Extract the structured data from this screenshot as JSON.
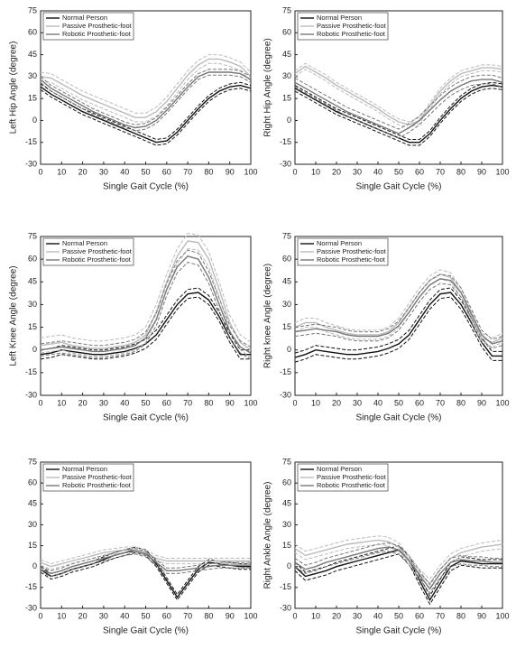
{
  "chart_data": [
    {
      "type": "line",
      "ylabel": "Left Hip Angle (degree)",
      "xlabel": "Single Gait Cycle (%)",
      "x": [
        0,
        5,
        10,
        15,
        20,
        25,
        30,
        35,
        40,
        45,
        50,
        55,
        60,
        65,
        70,
        75,
        80,
        85,
        90,
        95,
        100
      ],
      "xlim": [
        0,
        100
      ],
      "xticks": [
        0,
        10,
        20,
        30,
        40,
        50,
        60,
        70,
        80,
        90,
        100
      ],
      "ylim": [
        -30,
        75
      ],
      "yticks": [
        -30,
        -15,
        0,
        15,
        30,
        45,
        60,
        75
      ],
      "legend": "top-left",
      "series": [
        {
          "name": "Normal Person",
          "color": "#111111",
          "sd": 2,
          "values": [
            23,
            18,
            14,
            10,
            6,
            3,
            0,
            -3,
            -6,
            -9,
            -12,
            -15,
            -14,
            -8,
            0,
            8,
            15,
            20,
            23,
            24,
            22
          ]
        },
        {
          "name": "Passive Prosthetic-foot",
          "color": "#bbbbbb",
          "sd": 3,
          "values": [
            30,
            29,
            25,
            21,
            17,
            14,
            11,
            8,
            5,
            2,
            2,
            6,
            13,
            22,
            31,
            38,
            42,
            42,
            40,
            37,
            30
          ]
        },
        {
          "name": "Robotic Prosthetic-foot",
          "color": "#777777",
          "sd": 2,
          "values": [
            28,
            22,
            18,
            14,
            10,
            6,
            3,
            0,
            -3,
            -5,
            -4,
            0,
            7,
            15,
            23,
            30,
            33,
            33,
            33,
            32,
            28
          ]
        }
      ]
    },
    {
      "type": "line",
      "ylabel": "Right Hip Angle (degree)",
      "xlabel": "Single Gait Cycle (%)",
      "x": [
        0,
        5,
        10,
        15,
        20,
        25,
        30,
        35,
        40,
        45,
        50,
        55,
        60,
        65,
        70,
        75,
        80,
        85,
        90,
        95,
        100
      ],
      "xlim": [
        0,
        100
      ],
      "xticks": [
        0,
        10,
        20,
        30,
        40,
        50,
        60,
        70,
        80,
        90,
        100
      ],
      "ylim": [
        -30,
        75
      ],
      "yticks": [
        -30,
        -15,
        0,
        15,
        30,
        45,
        60,
        75
      ],
      "legend": "top-left",
      "series": [
        {
          "name": "Normal Person",
          "color": "#111111",
          "sd": 2,
          "values": [
            22,
            18,
            14,
            10,
            6,
            3,
            0,
            -3,
            -6,
            -9,
            -12,
            -15,
            -15,
            -9,
            0,
            8,
            15,
            20,
            23,
            24,
            23
          ]
        },
        {
          "name": "Passive Prosthetic-foot",
          "color": "#bbbbbb",
          "sd": 2,
          "values": [
            32,
            37,
            33,
            29,
            24,
            20,
            16,
            12,
            8,
            3,
            -1,
            -3,
            0,
            10,
            20,
            27,
            32,
            34,
            36,
            36,
            35
          ]
        },
        {
          "name": "Robotic Prosthetic-foot",
          "color": "#777777",
          "sd": 3,
          "values": [
            26,
            22,
            18,
            14,
            10,
            6,
            3,
            0,
            -3,
            -6,
            -9,
            -5,
            0,
            7,
            14,
            20,
            24,
            27,
            28,
            28,
            26
          ]
        }
      ]
    },
    {
      "type": "line",
      "ylabel": "Left Knee Angle (degree)",
      "xlabel": "Single Gait Cycle (%)",
      "x": [
        0,
        5,
        10,
        15,
        20,
        25,
        30,
        35,
        40,
        45,
        50,
        55,
        60,
        65,
        70,
        75,
        80,
        85,
        90,
        95,
        100
      ],
      "xlim": [
        0,
        100
      ],
      "xticks": [
        0,
        10,
        20,
        30,
        40,
        50,
        60,
        70,
        80,
        90,
        100
      ],
      "ylim": [
        -30,
        75
      ],
      "yticks": [
        -30,
        -15,
        0,
        15,
        30,
        45,
        60,
        75
      ],
      "legend": "top-left",
      "series": [
        {
          "name": "Normal Person",
          "color": "#111111",
          "sd": 3,
          "values": [
            -3,
            -2,
            0,
            -1,
            -2,
            -3,
            -3,
            -2,
            -1,
            1,
            4,
            10,
            20,
            30,
            37,
            38,
            33,
            22,
            8,
            -3,
            -3
          ]
        },
        {
          "name": "Passive Prosthetic-foot",
          "color": "#bbbbbb",
          "sd": 5,
          "values": [
            3,
            4,
            5,
            3,
            2,
            1,
            1,
            2,
            3,
            5,
            10,
            25,
            45,
            62,
            72,
            71,
            60,
            40,
            18,
            5,
            0
          ]
        },
        {
          "name": "Robotic Prosthetic-foot",
          "color": "#777777",
          "sd": 4,
          "values": [
            0,
            1,
            2,
            1,
            0,
            -1,
            -1,
            0,
            1,
            3,
            8,
            20,
            40,
            55,
            62,
            60,
            48,
            30,
            12,
            2,
            -2
          ]
        }
      ]
    },
    {
      "type": "line",
      "ylabel": "Right knee Angle (degree)",
      "xlabel": "Single Gait Cycle (%)",
      "x": [
        0,
        5,
        10,
        15,
        20,
        25,
        30,
        35,
        40,
        45,
        50,
        55,
        60,
        65,
        70,
        75,
        80,
        85,
        90,
        95,
        100
      ],
      "xlim": [
        0,
        100
      ],
      "xticks": [
        0,
        10,
        20,
        30,
        40,
        50,
        60,
        70,
        80,
        90,
        100
      ],
      "ylim": [
        -30,
        75
      ],
      "yticks": [
        -30,
        -15,
        0,
        15,
        30,
        45,
        60,
        75
      ],
      "legend": "top-left",
      "series": [
        {
          "name": "Normal Person",
          "color": "#111111",
          "sd": 3,
          "values": [
            -5,
            -3,
            0,
            -1,
            -2,
            -3,
            -3,
            -2,
            -1,
            1,
            4,
            10,
            20,
            30,
            37,
            38,
            30,
            18,
            5,
            -4,
            -4
          ]
        },
        {
          "name": "Passive Prosthetic-foot",
          "color": "#bbbbbb",
          "sd": 3,
          "values": [
            15,
            18,
            18,
            15,
            13,
            11,
            10,
            10,
            10,
            12,
            18,
            28,
            38,
            46,
            50,
            48,
            38,
            22,
            8,
            5,
            8
          ]
        },
        {
          "name": "Robotic Prosthetic-foot",
          "color": "#777777",
          "sd": 3,
          "values": [
            12,
            13,
            14,
            13,
            12,
            10,
            9,
            9,
            9,
            11,
            16,
            25,
            35,
            43,
            47,
            46,
            38,
            24,
            10,
            4,
            6
          ]
        }
      ]
    },
    {
      "type": "line",
      "xlabel": "Single Gait Cycle (%)",
      "x": [
        0,
        5,
        10,
        15,
        20,
        25,
        30,
        35,
        40,
        45,
        50,
        55,
        60,
        65,
        70,
        75,
        80,
        85,
        90,
        95,
        100
      ],
      "xlim": [
        0,
        100
      ],
      "xticks": [
        0,
        10,
        20,
        30,
        40,
        50,
        60,
        70,
        80,
        90,
        100
      ],
      "ylim": [
        -30,
        75
      ],
      "yticks": [
        -30,
        -15,
        0,
        15,
        30,
        45,
        60,
        75
      ],
      "legend": "top-left",
      "series": [
        {
          "name": "Normal Person",
          "color": "#111111",
          "sd": 2,
          "values": [
            -2,
            -7,
            -5,
            -2,
            0,
            2,
            5,
            8,
            10,
            12,
            10,
            2,
            -10,
            -22,
            -12,
            -2,
            3,
            2,
            1,
            0,
            0
          ]
        },
        {
          "name": "Passive Prosthetic-foot",
          "color": "#bbbbbb",
          "sd": 2,
          "values": [
            3,
            0,
            2,
            4,
            6,
            8,
            10,
            11,
            12,
            12,
            10,
            6,
            4,
            4,
            4,
            4,
            4,
            4,
            4,
            4,
            4
          ]
        },
        {
          "name": "Robotic Prosthetic-foot",
          "color": "#777777",
          "sd": 2,
          "values": [
            -2,
            -5,
            -3,
            0,
            2,
            4,
            6,
            8,
            10,
            11,
            9,
            3,
            -3,
            -3,
            -2,
            -1,
            0,
            1,
            1,
            1,
            1
          ]
        }
      ]
    },
    {
      "type": "line",
      "ylabel": "Right Ankle Angle (degree)",
      "xlabel": "Single Gait Cycle (%)",
      "x": [
        0,
        5,
        10,
        15,
        20,
        25,
        30,
        35,
        40,
        45,
        50,
        55,
        60,
        65,
        70,
        75,
        80,
        85,
        90,
        95,
        100
      ],
      "xlim": [
        0,
        100
      ],
      "xticks": [
        0,
        10,
        20,
        30,
        40,
        50,
        60,
        70,
        80,
        90,
        100
      ],
      "ylim": [
        -30,
        75
      ],
      "yticks": [
        -30,
        -15,
        0,
        15,
        30,
        45,
        60,
        75
      ],
      "legend": "top-left",
      "series": [
        {
          "name": "Normal Person",
          "color": "#111111",
          "sd": 3,
          "values": [
            0,
            -7,
            -5,
            -3,
            0,
            2,
            4,
            6,
            8,
            10,
            12,
            5,
            -10,
            -24,
            -12,
            0,
            4,
            3,
            2,
            2,
            2
          ]
        },
        {
          "name": "Passive Prosthetic-foot",
          "color": "#bbbbbb",
          "sd": 3,
          "values": [
            13,
            8,
            10,
            12,
            14,
            16,
            17,
            18,
            19,
            18,
            14,
            5,
            -5,
            -12,
            -2,
            6,
            10,
            12,
            14,
            15,
            16
          ]
        },
        {
          "name": "Robotic Prosthetic-foot",
          "color": "#777777",
          "sd": 3,
          "values": [
            3,
            -2,
            0,
            3,
            5,
            7,
            9,
            11,
            13,
            14,
            12,
            4,
            -6,
            -16,
            -5,
            3,
            5,
            4,
            4,
            3,
            3
          ]
        }
      ]
    }
  ]
}
